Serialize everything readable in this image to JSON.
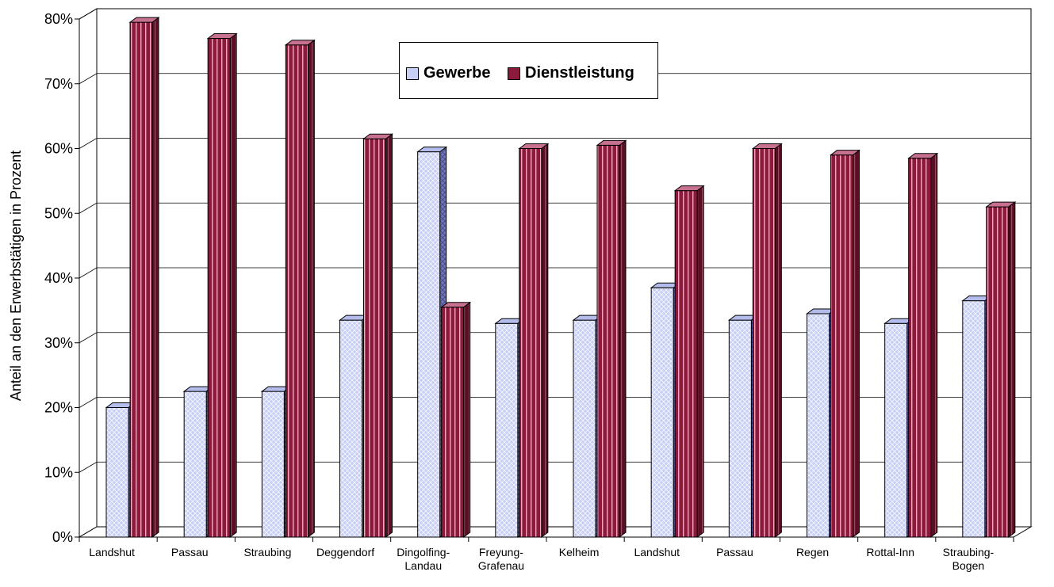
{
  "chart_data": {
    "type": "bar",
    "ylabel": "Anteil an den Erwerbstätigen in Prozent",
    "xlabel": "",
    "ylim": [
      0,
      80
    ],
    "yticks": [
      "0%",
      "10%",
      "20%",
      "30%",
      "40%",
      "50%",
      "60%",
      "70%",
      "80%"
    ],
    "grid": true,
    "legend_position": "top-center",
    "categories": [
      [
        "Landshut"
      ],
      [
        "Passau"
      ],
      [
        "Straubing"
      ],
      [
        "Deggendorf"
      ],
      [
        "Dingolfing-",
        "Landau"
      ],
      [
        "Freyung-",
        "Grafenau"
      ],
      [
        "Kelheim"
      ],
      [
        "Landshut"
      ],
      [
        "Passau"
      ],
      [
        "Regen"
      ],
      [
        "Rottal-Inn"
      ],
      [
        "Straubing-",
        "Bogen"
      ]
    ],
    "series": [
      {
        "name": "Gewerbe",
        "color": "#c8cff5",
        "values": [
          20,
          22.5,
          22.5,
          33.5,
          59.5,
          33,
          33.5,
          38.5,
          33.5,
          34.5,
          33,
          36.5
        ]
      },
      {
        "name": "Dienstleistung",
        "color": "#8b1a3c",
        "values": [
          79.5,
          77,
          76,
          61.5,
          35.5,
          60,
          60.5,
          53.5,
          60,
          59,
          58.5,
          51
        ]
      }
    ]
  }
}
